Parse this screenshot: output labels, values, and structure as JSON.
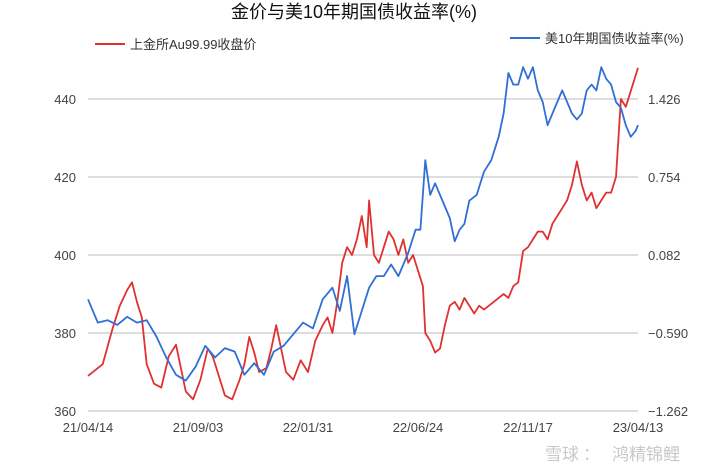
{
  "chart_data": {
    "type": "line",
    "title": "金价与美10年期国债收益率(%)",
    "x_ticks": [
      "21/04/14",
      "21/09/03",
      "22/01/31",
      "22/06/24",
      "22/11/17",
      "23/04/13"
    ],
    "y_left": {
      "ticks": [
        "360",
        "380",
        "400",
        "420",
        "440"
      ],
      "range": [
        360,
        450
      ]
    },
    "y_right": {
      "ticks": [
        "−1.262",
        "−0.590",
        "0.082",
        "0.754",
        "1.426"
      ],
      "range": [
        -1.262,
        1.762
      ]
    },
    "grid": true,
    "legend_placement": "top",
    "series": [
      {
        "name": "上金所Au99.99收盘价",
        "color": "#e03131",
        "axis": "left",
        "points": [
          [
            0,
            369
          ],
          [
            12,
            372
          ],
          [
            20,
            381
          ],
          [
            26,
            387
          ],
          [
            32,
            391
          ],
          [
            36,
            393
          ],
          [
            40,
            388
          ],
          [
            44,
            384
          ],
          [
            48,
            372
          ],
          [
            54,
            367
          ],
          [
            60,
            366
          ],
          [
            66,
            374
          ],
          [
            72,
            377
          ],
          [
            76,
            371
          ],
          [
            80,
            365
          ],
          [
            86,
            363
          ],
          [
            92,
            368
          ],
          [
            98,
            376
          ],
          [
            102,
            374
          ],
          [
            106,
            370
          ],
          [
            112,
            364
          ],
          [
            118,
            363
          ],
          [
            124,
            368
          ],
          [
            128,
            372
          ],
          [
            132,
            379
          ],
          [
            136,
            375
          ],
          [
            140,
            370
          ],
          [
            146,
            371
          ],
          [
            150,
            376
          ],
          [
            154,
            382
          ],
          [
            158,
            376
          ],
          [
            162,
            370
          ],
          [
            168,
            368
          ],
          [
            174,
            373
          ],
          [
            180,
            370
          ],
          [
            186,
            378
          ],
          [
            192,
            382
          ],
          [
            196,
            384
          ],
          [
            200,
            380
          ],
          [
            204,
            388
          ],
          [
            208,
            398
          ],
          [
            212,
            402
          ],
          [
            216,
            400
          ],
          [
            220,
            404
          ],
          [
            224,
            410
          ],
          [
            228,
            402
          ],
          [
            230,
            414
          ],
          [
            234,
            400
          ],
          [
            238,
            398
          ],
          [
            242,
            402
          ],
          [
            246,
            406
          ],
          [
            250,
            404
          ],
          [
            254,
            400
          ],
          [
            258,
            404
          ],
          [
            262,
            398
          ],
          [
            266,
            400
          ],
          [
            270,
            396
          ],
          [
            274,
            392
          ],
          [
            276,
            380
          ],
          [
            280,
            378
          ],
          [
            284,
            375
          ],
          [
            288,
            376
          ],
          [
            292,
            382
          ],
          [
            296,
            387
          ],
          [
            300,
            388
          ],
          [
            304,
            386
          ],
          [
            308,
            389
          ],
          [
            312,
            387
          ],
          [
            316,
            385
          ],
          [
            320,
            387
          ],
          [
            324,
            386
          ],
          [
            328,
            387
          ],
          [
            332,
            388
          ],
          [
            336,
            389
          ],
          [
            340,
            390
          ],
          [
            344,
            389
          ],
          [
            348,
            392
          ],
          [
            352,
            393
          ],
          [
            356,
            401
          ],
          [
            360,
            402
          ],
          [
            364,
            404
          ],
          [
            368,
            406
          ],
          [
            372,
            406
          ],
          [
            376,
            404
          ],
          [
            380,
            408
          ],
          [
            384,
            410
          ],
          [
            388,
            412
          ],
          [
            392,
            414
          ],
          [
            396,
            418
          ],
          [
            400,
            424
          ],
          [
            404,
            418
          ],
          [
            408,
            414
          ],
          [
            412,
            416
          ],
          [
            416,
            412
          ],
          [
            420,
            414
          ],
          [
            424,
            416
          ],
          [
            428,
            416
          ],
          [
            432,
            420
          ],
          [
            436,
            440
          ],
          [
            440,
            438
          ],
          [
            444,
            442
          ],
          [
            448,
            446
          ],
          [
            450,
            448
          ]
        ]
      },
      {
        "name": "美10年期国债收益率(%)",
        "color": "#2f6fd6",
        "axis": "right",
        "points": [
          [
            0,
            -0.3
          ],
          [
            8,
            -0.5
          ],
          [
            16,
            -0.48
          ],
          [
            24,
            -0.52
          ],
          [
            32,
            -0.45
          ],
          [
            40,
            -0.5
          ],
          [
            48,
            -0.48
          ],
          [
            56,
            -0.62
          ],
          [
            64,
            -0.8
          ],
          [
            72,
            -0.95
          ],
          [
            80,
            -1.0
          ],
          [
            88,
            -0.88
          ],
          [
            96,
            -0.7
          ],
          [
            104,
            -0.8
          ],
          [
            112,
            -0.72
          ],
          [
            120,
            -0.75
          ],
          [
            128,
            -0.95
          ],
          [
            136,
            -0.85
          ],
          [
            144,
            -0.95
          ],
          [
            152,
            -0.75
          ],
          [
            160,
            -0.7
          ],
          [
            168,
            -0.6
          ],
          [
            176,
            -0.5
          ],
          [
            184,
            -0.55
          ],
          [
            192,
            -0.3
          ],
          [
            200,
            -0.2
          ],
          [
            206,
            -0.4
          ],
          [
            212,
            -0.1
          ],
          [
            218,
            -0.6
          ],
          [
            224,
            -0.4
          ],
          [
            230,
            -0.2
          ],
          [
            236,
            -0.1
          ],
          [
            242,
            -0.1
          ],
          [
            248,
            0.0
          ],
          [
            254,
            -0.1
          ],
          [
            262,
            0.1
          ],
          [
            268,
            0.3
          ],
          [
            272,
            0.3
          ],
          [
            276,
            0.9
          ],
          [
            280,
            0.6
          ],
          [
            284,
            0.7
          ],
          [
            288,
            0.6
          ],
          [
            292,
            0.5
          ],
          [
            296,
            0.4
          ],
          [
            300,
            0.2
          ],
          [
            304,
            0.3
          ],
          [
            308,
            0.35
          ],
          [
            312,
            0.55
          ],
          [
            318,
            0.6
          ],
          [
            324,
            0.8
          ],
          [
            330,
            0.9
          ],
          [
            336,
            1.1
          ],
          [
            340,
            1.3
          ],
          [
            344,
            1.65
          ],
          [
            348,
            1.55
          ],
          [
            352,
            1.55
          ],
          [
            356,
            1.7
          ],
          [
            360,
            1.6
          ],
          [
            364,
            1.7
          ],
          [
            368,
            1.5
          ],
          [
            372,
            1.4
          ],
          [
            376,
            1.2
          ],
          [
            380,
            1.3
          ],
          [
            384,
            1.4
          ],
          [
            388,
            1.5
          ],
          [
            392,
            1.4
          ],
          [
            396,
            1.3
          ],
          [
            400,
            1.25
          ],
          [
            404,
            1.3
          ],
          [
            408,
            1.5
          ],
          [
            412,
            1.55
          ],
          [
            416,
            1.5
          ],
          [
            420,
            1.7
          ],
          [
            424,
            1.6
          ],
          [
            428,
            1.55
          ],
          [
            432,
            1.4
          ],
          [
            436,
            1.35
          ],
          [
            440,
            1.2
          ],
          [
            444,
            1.1
          ],
          [
            448,
            1.15
          ],
          [
            450,
            1.2
          ]
        ]
      }
    ]
  },
  "watermark": {
    "brand": "雪球",
    "separator": "：",
    "author": "鸿精锦鲤"
  }
}
